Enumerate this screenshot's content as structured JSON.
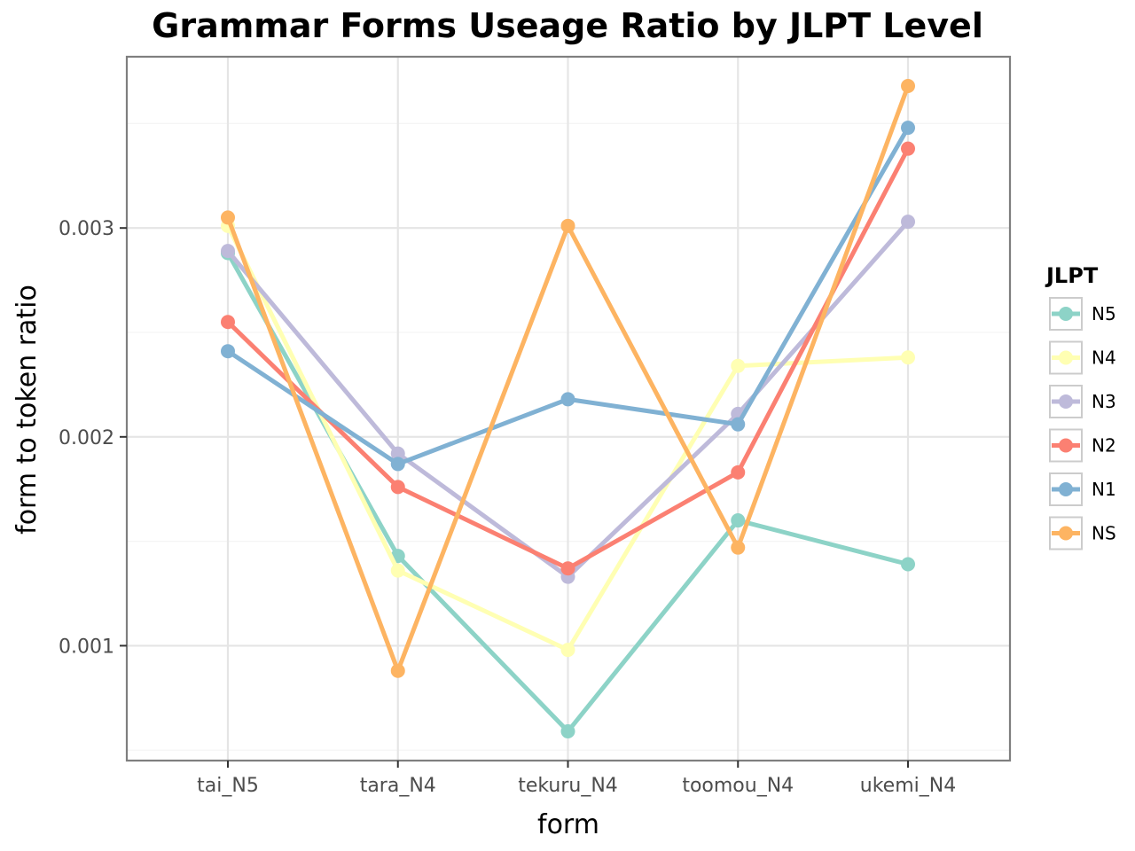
{
  "chart_data": {
    "type": "line",
    "title": "Grammar Forms Useage Ratio by JLPT Level",
    "xlabel": "form",
    "ylabel": "form to token ratio",
    "categories": [
      "tai_N5",
      "tara_N4",
      "tekuru_N4",
      "toomou_N4",
      "ukemi_N4"
    ],
    "ylim": [
      0.00045,
      0.00382
    ],
    "yticks": [
      0.001,
      0.002,
      0.003
    ],
    "ytick_labels": [
      "0.001",
      "0.002",
      "0.003"
    ],
    "grid": true,
    "legend": {
      "title": "JLPT",
      "position": "right"
    },
    "series": [
      {
        "name": "N5",
        "color": "#8dd3c7",
        "values": [
          0.00288,
          0.00143,
          0.00059,
          0.0016,
          0.00139
        ]
      },
      {
        "name": "N4",
        "color": "#ffffb3",
        "values": [
          0.00301,
          0.00136,
          0.00098,
          0.00234,
          0.00238
        ]
      },
      {
        "name": "N3",
        "color": "#bebada",
        "values": [
          0.00289,
          0.00192,
          0.00133,
          0.00211,
          0.00303
        ]
      },
      {
        "name": "N2",
        "color": "#fb8072",
        "values": [
          0.00255,
          0.00176,
          0.00137,
          0.00183,
          0.00338
        ]
      },
      {
        "name": "N1",
        "color": "#80b1d3",
        "values": [
          0.00241,
          0.00187,
          0.00218,
          0.00206,
          0.00348
        ]
      },
      {
        "name": "NS",
        "color": "#fdb462",
        "values": [
          0.00305,
          0.00088,
          0.00301,
          0.00147,
          0.00368
        ]
      }
    ]
  }
}
